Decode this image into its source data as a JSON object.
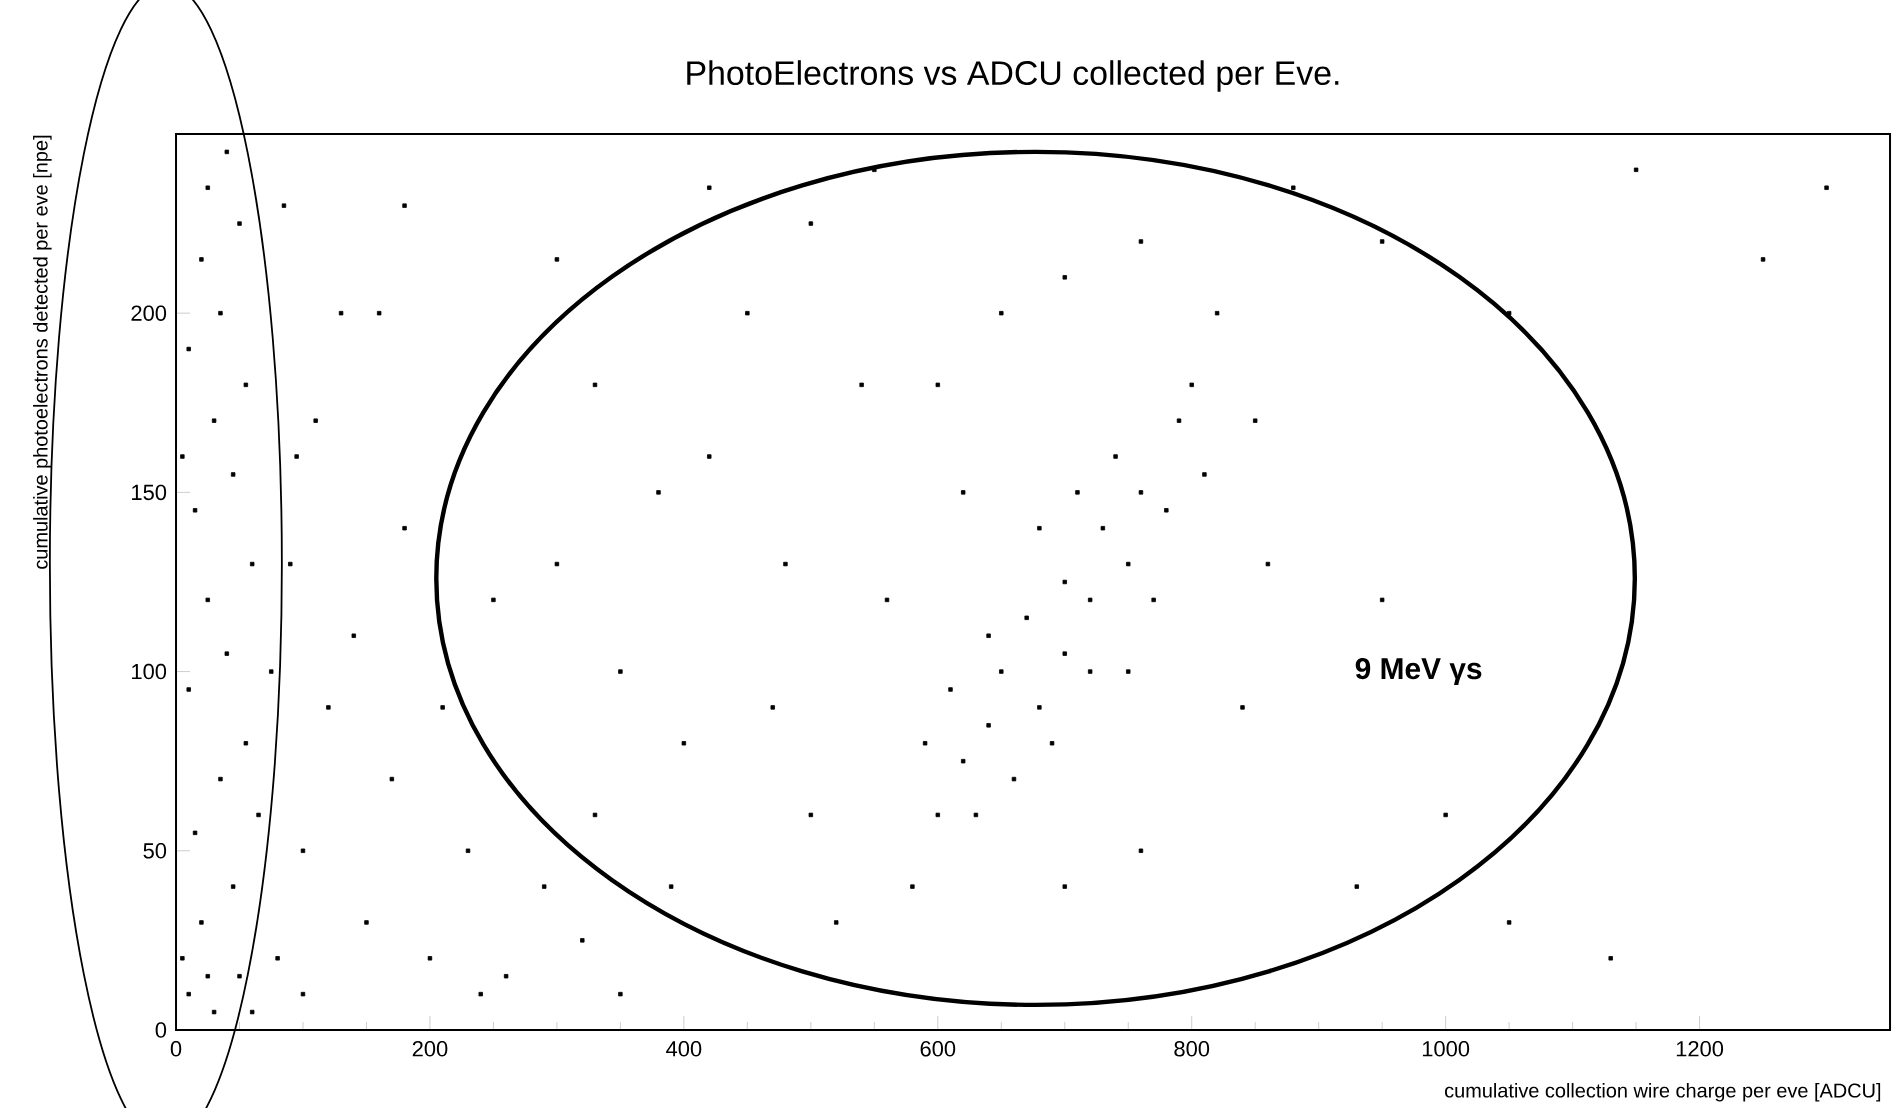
{
  "chart_data": {
    "type": "scatter",
    "title": "PhotoElectrons vs ADCU collected per Eve.",
    "xlabel": "cumulative collection wire charge per eve  [ADCU]",
    "ylabel": "cumulative photoelectrons detected per eve  [npe]",
    "annotations": [
      "9 MeV γs"
    ],
    "xlim": [
      0,
      1350
    ],
    "ylim": [
      0,
      250
    ],
    "xticks": [
      0,
      200,
      400,
      600,
      800,
      1000,
      1200
    ],
    "yticks": [
      0,
      50,
      100,
      150,
      200
    ],
    "marker": "square",
    "series": [
      {
        "color": "#000000",
        "x": [
          10,
          30,
          50,
          20,
          45,
          15,
          35,
          55,
          10,
          40,
          25,
          60,
          15,
          45,
          30,
          55,
          10,
          35,
          20,
          50,
          25,
          40,
          5,
          65,
          5,
          25,
          60,
          80,
          100,
          120,
          90,
          150,
          170,
          140,
          200,
          230,
          210,
          260,
          290,
          180,
          110,
          130,
          240,
          320,
          350,
          100,
          75,
          95,
          85,
          160,
          250,
          180,
          300,
          420,
          500,
          550,
          950,
          1050,
          1150,
          880,
          330,
          450,
          380,
          300,
          350,
          400,
          420,
          480,
          500,
          540,
          470,
          390,
          330,
          560,
          600,
          650,
          700,
          760,
          820,
          850,
          860,
          840,
          760,
          700,
          580,
          520,
          620,
          600,
          620,
          640,
          610,
          650,
          680,
          670,
          700,
          700,
          720,
          730,
          750,
          760,
          780,
          740,
          790,
          770,
          810,
          660,
          690,
          720,
          640,
          800,
          710,
          680,
          750,
          590,
          630,
          950,
          1000,
          1050,
          1130,
          930,
          1250,
          1300
        ],
        "values": [
          10,
          5,
          15,
          30,
          40,
          55,
          70,
          80,
          95,
          105,
          120,
          130,
          145,
          155,
          170,
          180,
          190,
          200,
          215,
          225,
          235,
          245,
          160,
          60,
          20,
          15,
          5,
          20,
          50,
          90,
          130,
          30,
          70,
          110,
          20,
          50,
          90,
          15,
          40,
          140,
          170,
          200,
          10,
          25,
          10,
          10,
          100,
          160,
          230,
          200,
          120,
          230,
          215,
          235,
          225,
          240,
          220,
          200,
          240,
          235,
          180,
          200,
          150,
          130,
          100,
          80,
          160,
          130,
          60,
          180,
          90,
          40,
          60,
          120,
          180,
          200,
          210,
          220,
          200,
          170,
          130,
          90,
          50,
          40,
          40,
          30,
          150,
          60,
          75,
          85,
          95,
          100,
          90,
          115,
          105,
          125,
          120,
          140,
          130,
          150,
          145,
          160,
          170,
          120,
          155,
          70,
          80,
          100,
          110,
          180,
          150,
          140,
          100,
          80,
          60,
          120,
          60,
          30,
          20,
          40,
          215,
          235
        ]
      }
    ]
  }
}
